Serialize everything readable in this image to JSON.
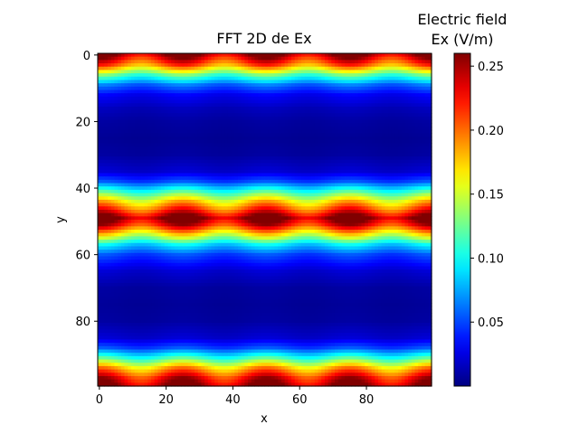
{
  "chart_data": {
    "type": "heatmap",
    "title": "FFT 2D de Ex",
    "xlabel": "x",
    "ylabel": "y",
    "xlim": [
      -0.5,
      99.5
    ],
    "ylim": [
      99.5,
      -0.5
    ],
    "y_inverted": true,
    "grid_size": [
      100,
      100
    ],
    "xticks": [
      0,
      20,
      40,
      60,
      80
    ],
    "yticks": [
      0,
      20,
      40,
      60,
      80
    ],
    "colormap": "jet",
    "colorbar": {
      "title": "Electric field\nEx (V/m)",
      "title_lines": [
        "Electric field",
        "Ex (V/m)"
      ],
      "range": [
        0.0,
        0.26
      ],
      "ticks": [
        0.05,
        0.1,
        0.15,
        0.2,
        0.25
      ],
      "tick_labels": [
        "0.05",
        "0.10",
        "0.15",
        "0.20",
        "0.25"
      ],
      "position": "right"
    },
    "profile_along_y": {
      "description_rows": [
        0,
        3,
        6,
        9,
        12,
        16,
        20,
        25,
        30,
        35,
        38,
        41,
        44,
        47,
        49,
        51,
        54,
        57,
        60,
        65,
        70,
        75,
        80,
        85,
        88,
        91,
        94,
        97,
        99
      ],
      "values": [
        0.25,
        0.2,
        0.12,
        0.06,
        0.03,
        0.015,
        0.008,
        0.005,
        0.008,
        0.02,
        0.05,
        0.11,
        0.17,
        0.22,
        0.26,
        0.23,
        0.16,
        0.09,
        0.05,
        0.02,
        0.008,
        0.006,
        0.008,
        0.02,
        0.05,
        0.11,
        0.18,
        0.23,
        0.25
      ]
    },
    "modulation_along_x": {
      "period": 25,
      "phase_peaks_x": [
        0,
        25,
        50,
        75
      ],
      "relative_amplitude": 0.12
    }
  }
}
